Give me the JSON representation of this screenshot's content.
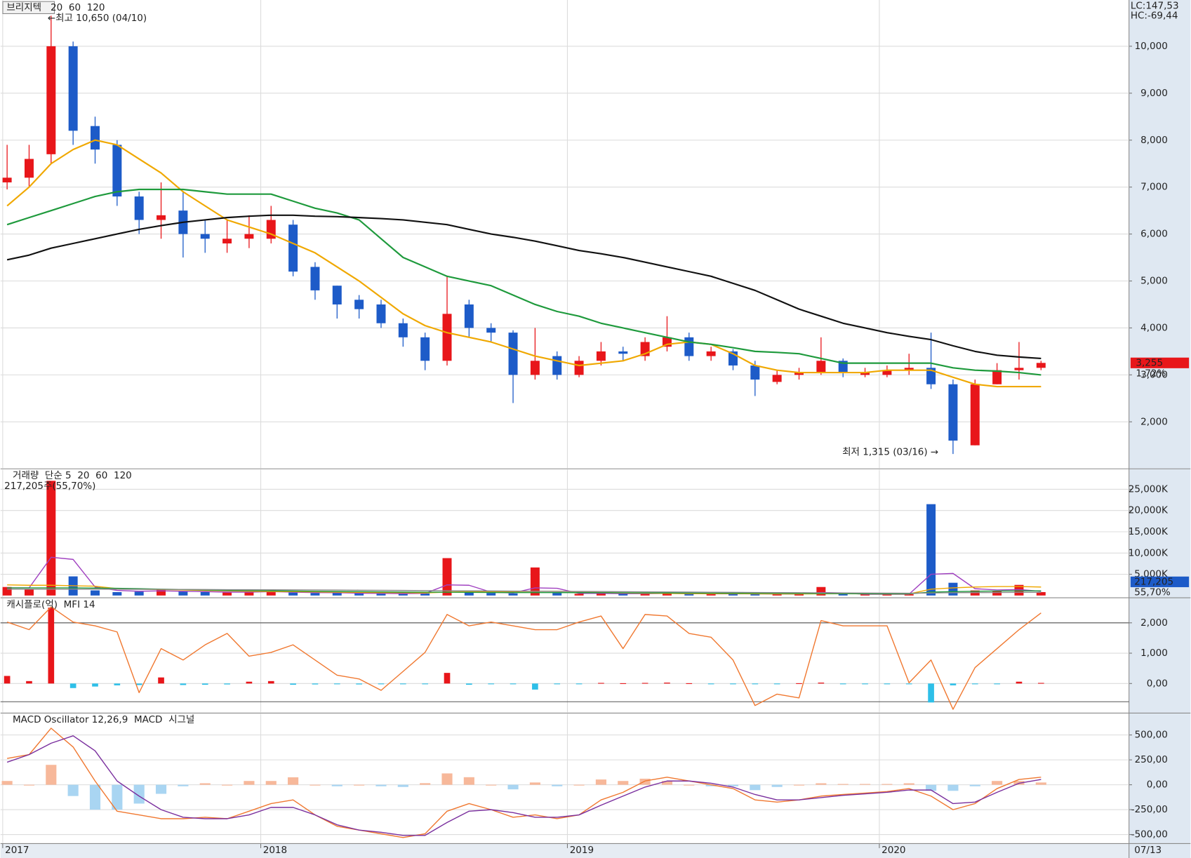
{
  "chart_data": [
    {
      "type": "candlestick",
      "title": "브리지텍",
      "xlim": [
        -0.3,
        51.0
      ],
      "xticks": [
        {
          "value": -0.2,
          "label": "2017"
        },
        {
          "value": 11.53,
          "label": "2018"
        },
        {
          "value": 25.47,
          "label": "2019"
        },
        {
          "value": 39.65,
          "label": "2020"
        }
      ],
      "last_date": "07/13",
      "ylim": [
        1015,
        10985
      ],
      "yticks": [
        {
          "value": 2000,
          "label": "2,000"
        },
        {
          "value": 3000,
          "label": "3,000"
        },
        {
          "value": 4000,
          "label": "4,000"
        },
        {
          "value": 5000,
          "label": "5,000"
        },
        {
          "value": 6000,
          "label": "6,000"
        },
        {
          "value": 7000,
          "label": "7,000"
        },
        {
          "value": 8000,
          "label": "8,000"
        },
        {
          "value": 9000,
          "label": "9,000"
        },
        {
          "value": 10000,
          "label": "10,000"
        }
      ],
      "grid": true,
      "up_color": "#e8161a",
      "down_color": "#1d5bc8",
      "open": [
        7100,
        7200,
        7700,
        10000,
        8300,
        7900,
        6800,
        6300,
        6500,
        6000,
        5800,
        5900,
        5900,
        6200,
        5300,
        4900,
        4600,
        4500,
        4100,
        3800,
        3300,
        4500,
        4000,
        3900,
        3000,
        3400,
        3000,
        3300,
        3500,
        3400,
        3600,
        3800,
        3400,
        3500,
        3200,
        2850,
        3000,
        3050,
        3300,
        3000,
        3000,
        3100,
        3150,
        2800,
        1500,
        2800,
        3100,
        3150
      ],
      "high": [
        7900,
        7900,
        10650,
        10100,
        8500,
        8000,
        6900,
        7100,
        6900,
        6300,
        6300,
        6400,
        6600,
        6300,
        5400,
        4900,
        4700,
        4600,
        4200,
        3900,
        5100,
        4600,
        4100,
        3950,
        4000,
        3500,
        3400,
        3700,
        3600,
        3800,
        4250,
        3900,
        3600,
        3550,
        3300,
        3100,
        3150,
        3800,
        3350,
        3150,
        3200,
        3450,
        3900,
        2900,
        2900,
        3250,
        3700,
        3300
      ],
      "low": [
        6950,
        7000,
        7500,
        7900,
        7500,
        6600,
        6000,
        5900,
        5500,
        5600,
        5600,
        5700,
        5800,
        5100,
        4600,
        4200,
        4200,
        4000,
        3600,
        3100,
        3200,
        3800,
        3700,
        2400,
        2900,
        2900,
        2950,
        3200,
        3300,
        3300,
        3500,
        3300,
        3300,
        3100,
        2550,
        2800,
        2900,
        3000,
        2950,
        2950,
        2950,
        3000,
        2700,
        1315,
        1500,
        2800,
        2900,
        3100
      ],
      "close": [
        7200,
        7600,
        10000,
        8200,
        7800,
        6800,
        6300,
        6400,
        6000,
        5900,
        5900,
        6000,
        6300,
        5200,
        4800,
        4500,
        4400,
        4100,
        3800,
        3300,
        4300,
        4000,
        3900,
        3000,
        3300,
        3000,
        3300,
        3500,
        3450,
        3700,
        3800,
        3400,
        3500,
        3200,
        2900,
        3000,
        3050,
        3300,
        3050,
        3050,
        3100,
        3150,
        2800,
        1600,
        2800,
        3100,
        3150,
        3255
      ],
      "series": [
        {
          "name": "20",
          "color": "#f0a800",
          "values": [
            6600,
            7000,
            7500,
            7800,
            8000,
            7900,
            7600,
            7300,
            6900,
            6600,
            6300,
            6150,
            6000,
            5800,
            5600,
            5300,
            5000,
            4650,
            4300,
            4050,
            3900,
            3800,
            3700,
            3550,
            3400,
            3300,
            3200,
            3250,
            3300,
            3450,
            3650,
            3700,
            3650,
            3450,
            3200,
            3100,
            3050,
            3050,
            3050,
            3050,
            3100,
            3100,
            3100,
            2950,
            2800,
            2750,
            2750,
            2750
          ]
        },
        {
          "name": "60",
          "color": "#1e9a3c",
          "values": [
            6200,
            6350,
            6500,
            6650,
            6800,
            6900,
            6950,
            6950,
            6950,
            6900,
            6850,
            6850,
            6850,
            6700,
            6550,
            6450,
            6300,
            5900,
            5500,
            5300,
            5100,
            5000,
            4900,
            4700,
            4500,
            4350,
            4250,
            4100,
            4000,
            3900,
            3800,
            3700,
            3650,
            3580,
            3500,
            3480,
            3450,
            3350,
            3250,
            3250,
            3250,
            3250,
            3250,
            3150,
            3100,
            3080,
            3050,
            3000
          ]
        },
        {
          "name": "120",
          "color": "#111111",
          "values": [
            5450,
            5550,
            5700,
            5800,
            5900,
            6000,
            6100,
            6180,
            6250,
            6300,
            6350,
            6380,
            6400,
            6400,
            6380,
            6370,
            6350,
            6330,
            6300,
            6250,
            6200,
            6100,
            6000,
            5930,
            5850,
            5750,
            5650,
            5580,
            5500,
            5400,
            5300,
            5200,
            5100,
            4950,
            4800,
            4600,
            4400,
            4250,
            4100,
            4000,
            3900,
            3820,
            3750,
            3620,
            3500,
            3420,
            3380,
            3350
          ]
        }
      ],
      "annotations": [
        {
          "text": "←최고 10,650 (04/10)",
          "color": "#e8161a"
        },
        {
          "text": "최저 1,315 (03/16) →",
          "color": "#1a2fa0"
        }
      ],
      "lc_label": "LC:147,53",
      "hc_label": "HC:-69,44",
      "last_label": "3,255",
      "change_label": "1,72%"
    },
    {
      "type": "bar",
      "title": "거래량",
      "title_color": "#2b7bb9",
      "subtitle": "217,205주(55,70%)",
      "ylim": [
        -360,
        29640
      ],
      "yticks": [
        {
          "value": 5000,
          "label": "5,000K"
        },
        {
          "value": 10000,
          "label": "10,000K"
        },
        {
          "value": 15000,
          "label": "15,000K"
        },
        {
          "value": 20000,
          "label": "20,000K"
        },
        {
          "value": 25000,
          "label": "25,000K"
        }
      ],
      "grid": true,
      "up_color": "#e8161a",
      "down_color": "#1d5bc8",
      "values": [
        2000,
        1500,
        27000,
        4500,
        1200,
        800,
        900,
        1500,
        900,
        800,
        700,
        800,
        1200,
        700,
        600,
        700,
        500,
        500,
        400,
        500,
        8800,
        900,
        600,
        500,
        6600,
        600,
        400,
        500,
        500,
        400,
        600,
        500,
        400,
        400,
        500,
        300,
        300,
        2000,
        300,
        300,
        300,
        300,
        21500,
        3000,
        1200,
        1000,
        2500,
        800
      ],
      "series": [
        {
          "name": "단순 5",
          "color": "#a040c0",
          "values": [
            1800,
            1800,
            9000,
            8500,
            2000,
            1200,
            1000,
            1100,
            1000,
            900,
            800,
            800,
            900,
            800,
            700,
            650,
            550,
            500,
            450,
            500,
            2500,
            2400,
            800,
            600,
            1800,
            1700,
            500,
            500,
            450,
            450,
            500,
            450,
            400,
            400,
            400,
            350,
            350,
            700,
            600,
            300,
            300,
            300,
            5000,
            5200,
            1600,
            1300,
            1400,
            1000
          ]
        },
        {
          "name": "20",
          "color": "#f0a800",
          "values": [
            2500,
            2400,
            2400,
            2300,
            2200,
            1600,
            1500,
            1400,
            1300,
            1200,
            1100,
            1000,
            950,
            900,
            850,
            800,
            750,
            700,
            650,
            600,
            800,
            900,
            900,
            900,
            1000,
            1000,
            900,
            700,
            600,
            550,
            500,
            450,
            450,
            450,
            400,
            380,
            380,
            400,
            420,
            400,
            380,
            380,
            1500,
            1800,
            2000,
            2100,
            2100,
            2000
          ]
        },
        {
          "name": "60",
          "color": "#1e9a3c",
          "values": [
            1800,
            1800,
            1800,
            1800,
            1750,
            1700,
            1600,
            1500,
            1400,
            1300,
            1200,
            1150,
            1100,
            1050,
            1000,
            950,
            900,
            850,
            800,
            780,
            760,
            740,
            720,
            700,
            700,
            700,
            680,
            660,
            640,
            620,
            600,
            580,
            560,
            540,
            520,
            500,
            480,
            460,
            440,
            420,
            400,
            400,
            800,
            900,
            1000,
            1050,
            1100,
            1100
          ]
        },
        {
          "name": "120",
          "color": "#888888",
          "values": [
            1500,
            1500,
            1500,
            1500,
            1500,
            1480,
            1460,
            1440,
            1420,
            1400,
            1380,
            1360,
            1340,
            1320,
            1300,
            1280,
            1250,
            1220,
            1190,
            1160,
            1130,
            1100,
            1070,
            1040,
            1010,
            980,
            950,
            920,
            890,
            860,
            830,
            800,
            770,
            740,
            710,
            680,
            650,
            620,
            600,
            580,
            560,
            540,
            600,
            650,
            700,
            720,
            740,
            750
          ]
        }
      ],
      "last_label": "217,205",
      "ratio_label": "55,70%"
    },
    {
      "type": "bar",
      "title": "캐시플로(억)",
      "title_color": "#222222",
      "ylim": [
        -950,
        2800
      ],
      "yticks": [
        {
          "value": 0,
          "label": "0,00"
        },
        {
          "value": 1000,
          "label": "1,000"
        },
        {
          "value": 2000,
          "label": "2,000"
        }
      ],
      "grid": true,
      "pos_color": "#e8161a",
      "neg_color": "#2ebfe8",
      "ref_lines": [
        2000,
        -600
      ],
      "values": [
        250,
        80,
        2500,
        -150,
        -100,
        -60,
        -50,
        200,
        -50,
        -40,
        -30,
        60,
        80,
        -40,
        -30,
        -20,
        -30,
        -20,
        -20,
        -20,
        350,
        -40,
        -20,
        -20,
        -200,
        -20,
        -10,
        20,
        10,
        20,
        30,
        10,
        -10,
        -10,
        -10,
        -10,
        10,
        30,
        -10,
        -10,
        -10,
        -10,
        -625,
        -60,
        -20,
        -10,
        60,
        20
      ],
      "series": [
        {
          "name": "MFI 14",
          "color": "#f07830",
          "values": [
            2025,
            1775,
            2525,
            2025,
            1900,
            1700,
            -300,
            1150,
            775,
            1275,
            1650,
            900,
            1025,
            1275,
            775,
            275,
            150,
            -225,
            400,
            1025,
            2275,
            1900,
            2025,
            1900,
            1775,
            1775,
            2025,
            2225,
            1150,
            2275,
            2225,
            1650,
            1525,
            775,
            -725,
            -350,
            -475,
            2075,
            1900,
            1900,
            1900,
            25,
            775,
            -850,
            525,
            1150,
            1775,
            2325
          ]
        }
      ]
    },
    {
      "type": "bar",
      "title": "MACD Oscillator 12,26,9",
      "title_color": "#9933cc",
      "ylim": [
        -583,
        712
      ],
      "yticks": [
        {
          "value": -500,
          "label": "-500,00"
        },
        {
          "value": -250,
          "label": "-250,00"
        },
        {
          "value": 0,
          "label": "0,00"
        },
        {
          "value": 250,
          "label": "250,00"
        },
        {
          "value": 500,
          "label": "500,00"
        }
      ],
      "grid": true,
      "pos_color": "#f7b89a",
      "neg_color": "#a9d5f2",
      "values": [
        38,
        0,
        200,
        -113,
        -250,
        -250,
        -189,
        -91,
        -15,
        15,
        0,
        38,
        38,
        75,
        0,
        -15,
        0,
        -15,
        -22,
        16,
        114,
        76,
        0,
        -46,
        23,
        -15,
        0,
        53,
        38,
        61,
        38,
        0,
        -15,
        -15,
        -54,
        -22,
        0,
        15,
        8,
        8,
        8,
        15,
        -61,
        -61,
        -15,
        38,
        38,
        23
      ],
      "series": [
        {
          "name": "MACD",
          "color": "#f07830",
          "values": [
            265,
            303,
            568,
            379,
            38,
            -265,
            -303,
            -341,
            -341,
            -326,
            -341,
            -265,
            -189,
            -152,
            -303,
            -417,
            -455,
            -492,
            -530,
            -492,
            -265,
            -189,
            -250,
            -326,
            -303,
            -341,
            -303,
            -152,
            -76,
            38,
            76,
            38,
            0,
            -38,
            -152,
            -174,
            -152,
            -114,
            -98,
            -83,
            -68,
            -38,
            -114,
            -250,
            -189,
            -38,
            53,
            76
          ]
        },
        {
          "name": "시그널",
          "color": "#7a2f9e",
          "values": [
            227,
            303,
            417,
            492,
            341,
            38,
            -114,
            -250,
            -326,
            -341,
            -341,
            -303,
            -227,
            -227,
            -303,
            -402,
            -455,
            -477,
            -508,
            -508,
            -379,
            -265,
            -250,
            -280,
            -326,
            -326,
            -303,
            -205,
            -114,
            -23,
            38,
            38,
            15,
            -23,
            -98,
            -152,
            -152,
            -129,
            -106,
            -91,
            -76,
            -53,
            -53,
            -189,
            -174,
            -76,
            15,
            53
          ]
        }
      ]
    }
  ]
}
